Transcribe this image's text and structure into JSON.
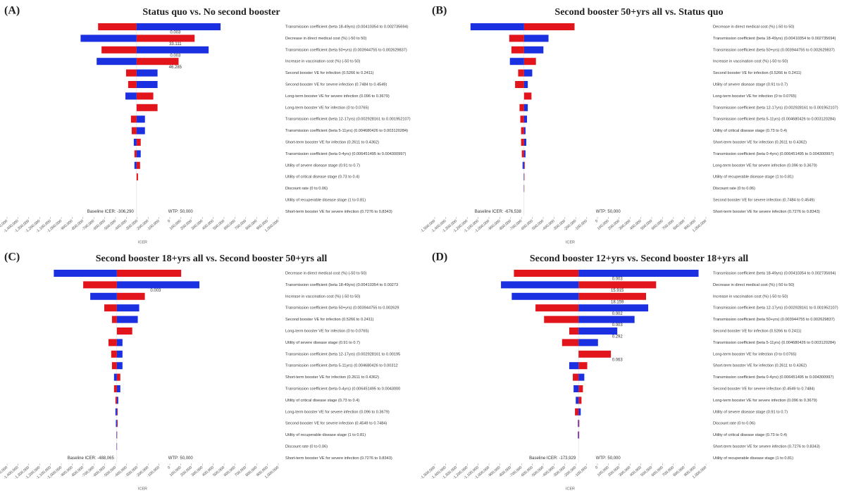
{
  "chart_data": [
    {
      "type": "tornado",
      "panel": "(A)",
      "title": "Status quo vs. No second booster",
      "xlabel": "ICER",
      "baseline": {
        "value": -306290,
        "label": "Baseline ICER: -306,290"
      },
      "wtp": {
        "value": 50000,
        "label": "WTP: 50,000"
      },
      "xlim": [
        -1500000,
        1000000
      ],
      "xticks": [
        {
          "value": -1500000,
          "label": "-1,500,000"
        },
        {
          "value": -1400000,
          "label": "-1,400,000"
        },
        {
          "value": -1300000,
          "label": "-1,300,000"
        },
        {
          "value": -1200000,
          "label": "-1,200,000"
        },
        {
          "value": -1100000,
          "label": "-1,100,000"
        },
        {
          "value": -1000000,
          "label": "-1,000,000"
        },
        {
          "value": -900000,
          "label": "-900,000"
        },
        {
          "value": -800000,
          "label": "-800,000"
        },
        {
          "value": -700000,
          "label": "-700,000"
        },
        {
          "value": -600000,
          "label": "-600,000"
        },
        {
          "value": -500000,
          "label": "-500,000"
        },
        {
          "value": -400000,
          "label": "-400,000"
        },
        {
          "value": -300000,
          "label": "-300,000"
        },
        {
          "value": -200000,
          "label": "-200,000"
        },
        {
          "value": -100000,
          "label": "-100,000"
        },
        0,
        {
          "value": 100000,
          "label": "100,000"
        },
        {
          "value": 200000,
          "label": "200,000"
        },
        {
          "value": 300000,
          "label": "300,000"
        },
        {
          "value": 400000,
          "label": "400,000"
        },
        {
          "value": 500000,
          "label": "500,000"
        },
        {
          "value": 600000,
          "label": "600,000"
        },
        {
          "value": 700000,
          "label": "700,000"
        },
        {
          "value": 800000,
          "label": "800,000"
        },
        {
          "value": 900000,
          "label": "900,000"
        },
        {
          "value": 1000000,
          "label": "1,000,000"
        }
      ],
      "categories": [
        "Transmission coefficient (beta 18-49yrs) (0.00410354 to 0.002735694)",
        "Decrease in direct medical cost (%) (-50 to 50)",
        "Transmission coefficient (beta 50+yrs) (0.003944755 to 0.002629837)",
        "Increase in vaccination cost (%) (-50 to 50)",
        "Second booster VE for infection (0.5266 to 0.2411)",
        "Second booster VE for severe infection (0.7484 to 0.4549)",
        "Long-term booster VE for severe infection (0.096 to 0.3679)",
        "Long-term booster VE for infection (0 to 0.0765)",
        "Transmission coefficient (beta 12-17yrs) (0.002928161 to 0.001952107)",
        "Transmission coefficient (beta 5-11yrs) (0.004680426 to 0.003120284)",
        "Short-term booster VE for infection (0.2611 to 0.4362)",
        "Transmission coefficient (beta 0-4yrs) (0.006451495 to 0.004300997)",
        "Utility of severe disease stage (0.91 to 0.7)",
        "Utility of critical disease stage (0.73 to 0.4)",
        "Discount rate (0 to 0.06)",
        "Utility of recuperable disease stage (1 to 0.81)",
        "Short-term booster VE for severe infection (0.7276 to 0.8343)"
      ],
      "series": [
        {
          "color": "#e3151c",
          "values": [
            -661000,
            229000,
            -629000,
            81000,
            -403000,
            -384000,
            -152000,
            -113000,
            -358000,
            -351000,
            -268000,
            -326000,
            -274000,
            -293000,
            -306290,
            -306290,
            -306290
          ]
        },
        {
          "color": "#1b30e0",
          "values": [
            468000,
            -822000,
            358000,
            -674000,
            -113000,
            -113000,
            -409000,
            -306290,
            -229000,
            -229000,
            -332000,
            -268000,
            -326000,
            -306290,
            -306290,
            -306290,
            -306290
          ]
        }
      ],
      "bar_labels": [
        "0.003",
        "33.111",
        "0.003",
        "46.285",
        null,
        null,
        null,
        null,
        null,
        null,
        null,
        null,
        null,
        null,
        null,
        null,
        null
      ]
    },
    {
      "type": "tornado",
      "panel": "(B)",
      "title": "Second booster 50+yrs all vs. Status quo",
      "xlabel": "ICER",
      "baseline": {
        "value": -676538,
        "label": "Baseline ICER: -676,538"
      },
      "wtp": {
        "value": 50000,
        "label": "WTP: 50,000"
      },
      "xlim": [
        -1500000,
        1000000
      ],
      "xticks": [
        {
          "value": -1500000,
          "label": "-1,500,000"
        },
        {
          "value": -1400000,
          "label": "-1,400,000"
        },
        {
          "value": -1300000,
          "label": "-1,300,000"
        },
        {
          "value": -1200000,
          "label": "-1,200,000"
        },
        {
          "value": -1100000,
          "label": "-1,100,000"
        },
        {
          "value": -1000000,
          "label": "-1,000,000"
        },
        {
          "value": -900000,
          "label": "-900,000"
        },
        {
          "value": -800000,
          "label": "-800,000"
        },
        {
          "value": -700000,
          "label": "-700,000"
        },
        {
          "value": -600000,
          "label": "-600,000"
        },
        {
          "value": -500000,
          "label": "-500,000"
        },
        {
          "value": -400000,
          "label": "-400,000"
        },
        {
          "value": -300000,
          "label": "-300,000"
        },
        {
          "value": -200000,
          "label": "-200,000"
        },
        {
          "value": -100000,
          "label": "-100,000"
        },
        0,
        {
          "value": 100000,
          "label": "100,000"
        },
        {
          "value": 200000,
          "label": "200,000"
        },
        {
          "value": 300000,
          "label": "300,000"
        },
        {
          "value": 400000,
          "label": "400,000"
        },
        {
          "value": 500000,
          "label": "500,000"
        },
        {
          "value": 600000,
          "label": "600,000"
        },
        {
          "value": 700000,
          "label": "700,000"
        },
        {
          "value": 800000,
          "label": "800,000"
        },
        {
          "value": 900000,
          "label": "900,000"
        },
        {
          "value": 1000000,
          "label": "1,000,000"
        }
      ],
      "categories": [
        "Decrease in direct medical cost (%) (-50 to 50)",
        "Transmission coefficient (beta 18-49yrs) (0.00410354 to 0.002735694)",
        "Transmission coefficient (beta 50+yrs) (0.003944755 to 0.002629837)",
        "Increase in vaccination cost (%) (-50 to 50)",
        "Second booster VE for infection (0.5266 to 0.2411)",
        "Utility of severe disease stage (0.91 to 0.7)",
        "Long-term booster VE for infection (0 to 0.0765)",
        "Transmission coefficient (beta 12-17yrs) (0.002928161 to 0.001952107)",
        "Transmission coefficient (beta 5-11yrs) (0.004680426 to 0.003120284)",
        "Utility of critical disease stage (0.73 to 0.4)",
        "Short-term booster VE for infection (0.2611 to 0.4362)",
        "Transmission coefficient (beta 0-4yrs) (0.006451495 to 0.004300997)",
        "Long-term booster VE for severe infection (0.096 to 0.3679)",
        "Utility of recuperable disease stage (1 to 0.81)",
        "Discount rate (0 to 0.06)",
        "Second booster VE for severe infection (0.7484 to 0.4549)",
        "Short-term booster VE for severe infection (0.7276 to 0.8343)"
      ],
      "series": [
        {
          "color": "#e3151c",
          "values": [
            -211000,
            -813000,
            -793000,
            -567000,
            -731000,
            -759000,
            -608000,
            -718000,
            -711000,
            -704000,
            -704000,
            -697000,
            -670000,
            -673000,
            -674000,
            -676538,
            -676538
          ]
        },
        {
          "color": "#1b30e0",
          "values": [
            -1170000,
            -451000,
            -498000,
            -807000,
            -601000,
            -642000,
            -676538,
            -642000,
            -649000,
            -663000,
            -656000,
            -663000,
            -690000,
            -680000,
            -679000,
            -676538,
            -676538
          ]
        }
      ],
      "bar_labels": [
        null,
        null,
        null,
        null,
        null,
        null,
        null,
        null,
        null,
        null,
        null,
        null,
        null,
        null,
        null,
        null,
        null
      ]
    },
    {
      "type": "tornado",
      "panel": "(C)",
      "title": "Second booster 18+yrs all vs. Second booster 50+yrs all",
      "xlabel": "ICER",
      "baseline": {
        "value": -488065,
        "label": "Baseline ICER: -488,065"
      },
      "wtp": {
        "value": 50000,
        "label": "WTP: 50,000"
      },
      "xlim": [
        -1500000,
        1000000
      ],
      "xticks": [
        {
          "value": -1500000,
          "label": "-1,500,000"
        },
        {
          "value": -1400000,
          "label": "-1,400,000"
        },
        {
          "value": -1300000,
          "label": "-1,300,000"
        },
        {
          "value": -1200000,
          "label": "-1,200,000"
        },
        {
          "value": -1100000,
          "label": "-1,100,000"
        },
        {
          "value": -1000000,
          "label": "-1,000,000"
        },
        {
          "value": -900000,
          "label": "-900,000"
        },
        {
          "value": -800000,
          "label": "-800,000"
        },
        {
          "value": -700000,
          "label": "-700,000"
        },
        {
          "value": -600000,
          "label": "-600,000"
        },
        {
          "value": -500000,
          "label": "-500,000"
        },
        {
          "value": -400000,
          "label": "-400,000"
        },
        {
          "value": -300000,
          "label": "-300,000"
        },
        {
          "value": -200000,
          "label": "-200,000"
        },
        {
          "value": -100000,
          "label": "-100,000"
        },
        0,
        {
          "value": 100000,
          "label": "100,000"
        },
        {
          "value": 200000,
          "label": "200,000"
        },
        {
          "value": 300000,
          "label": "300,000"
        },
        {
          "value": 400000,
          "label": "400,000"
        },
        {
          "value": 500000,
          "label": "500,000"
        },
        {
          "value": 600000,
          "label": "600,000"
        },
        {
          "value": 700000,
          "label": "700,000"
        },
        {
          "value": 800000,
          "label": "800,000"
        },
        {
          "value": 900000,
          "label": "900,000"
        },
        {
          "value": 1000000,
          "label": "1,000,000"
        }
      ],
      "categories": [
        "Decrease in direct medical cost (%) (-50 to 50)",
        "Transmission coefficient (beta 18-49yrs) (0.00410354 to 0.00273",
        "Increase in vaccination cost (%) (-50 to 50)",
        "Transmission coefficient (beta 50+yrs) (0.003944755 to 0.002629",
        "Second booster VE for infection (0.5266 to 0.2411)",
        "Long-term booster VE for infection (0 to 0.0765)",
        "Utility of severe disease stage (0.91 to 0.7)",
        "Transmission coefficient (beta 12-17yrs) (0.002928161 to 0.00195",
        "Transmission coefficient (beta 5-11yrs) (0.004680426 to 0.00312",
        "Short-term booster VE for infection (0.2611 to 0.4362)",
        "Transmission coefficient (beta 0-4yrs) (0.006451495 to 0.0043000",
        "Utility of critical disease stage (0.73 to 0.4)",
        "Long-term booster VE for severe infection (0.096 to 0.3679)",
        "Second booster VE for severe infection (0.4549 to 0.7484)",
        "Utility of recuperable disease stage (1 to 0.81)",
        "Discount rate (0 to 0.06)",
        "Short-term booster VE for severe infection (0.7276 to 0.8343)"
      ],
      "series": [
        {
          "color": "#e3151c",
          "values": [
            105000,
            -798000,
            -230000,
            -604000,
            -533000,
            -346000,
            -565000,
            -540000,
            -533000,
            -456000,
            -514000,
            -501000,
            -481000,
            -481000,
            -485000,
            -486000,
            -488065
          ]
        },
        {
          "color": "#1b30e0",
          "values": [
            -1069000,
            273000,
            -733000,
            -282000,
            -295000,
            -488065,
            -436000,
            -436000,
            -436000,
            -514000,
            -456000,
            -475000,
            -501000,
            -497000,
            -492000,
            -491000,
            -488065
          ]
        }
      ],
      "bar_labels": [
        null,
        "0.003",
        null,
        null,
        null,
        null,
        null,
        null,
        null,
        null,
        null,
        null,
        null,
        null,
        null,
        null,
        null
      ]
    },
    {
      "type": "tornado",
      "panel": "(D)",
      "title": "Second booster 12+yrs vs. Second booster 18+yrs all",
      "xlabel": "ICER",
      "baseline": {
        "value": -173929,
        "label": "Baseline ICER: -173,929"
      },
      "wtp": {
        "value": 50000,
        "label": "WTP: 50,000"
      },
      "xlim": [
        -1500000,
        1000000
      ],
      "xticks": [
        {
          "value": -1500000,
          "label": "-1,500,000"
        },
        {
          "value": -1400000,
          "label": "-1,400,000"
        },
        {
          "value": -1300000,
          "label": "-1,300,000"
        },
        {
          "value": -1200000,
          "label": "-1,200,000"
        },
        {
          "value": -1100000,
          "label": "-1,100,000"
        },
        {
          "value": -1000000,
          "label": "-1,000,000"
        },
        {
          "value": -900000,
          "label": "-900,000"
        },
        {
          "value": -800000,
          "label": "-800,000"
        },
        {
          "value": -700000,
          "label": "-700,000"
        },
        {
          "value": -600000,
          "label": "-600,000"
        },
        {
          "value": -500000,
          "label": "-500,000"
        },
        {
          "value": -400000,
          "label": "-400,000"
        },
        {
          "value": -300000,
          "label": "-300,000"
        },
        {
          "value": -200000,
          "label": "-200,000"
        },
        {
          "value": -100000,
          "label": "-100,000"
        },
        0,
        {
          "value": 100000,
          "label": "100,000"
        },
        {
          "value": 200000,
          "label": "200,000"
        },
        {
          "value": 300000,
          "label": "300,000"
        },
        {
          "value": 400000,
          "label": "400,000"
        },
        {
          "value": 500000,
          "label": "500,000"
        },
        {
          "value": 600000,
          "label": "600,000"
        },
        {
          "value": 700000,
          "label": "700,000"
        },
        {
          "value": 800000,
          "label": "800,000"
        },
        {
          "value": 900000,
          "label": "900,000"
        },
        {
          "value": 1000000,
          "label": "1,000,000"
        }
      ],
      "categories": [
        "Transmission coefficient (beta 18-49yrs) (0.00410354 to 0.002735694)",
        "Decrease in direct medical cost (%) (-50 to 50)",
        "Increase in vaccination cost (%) (-50 to 50)",
        "Transmission coefficient (beta 12-17yrs) (0.002928161 to 0.001952107)",
        "Transmission coefficient (beta 50+yrs) (0.003944755 to 0.002629837)",
        "Second booster VE for infection (0.5266 to 0.2411)",
        "Transmission coefficient (beta 5-11yrs) (0.004680426 to 0.003120284)",
        "Long-term booster VE for infection (0 to 0.0765)",
        "Short-term booster VE for infection (0.2611 to 0.4362)",
        "Transmission coefficient (beta 0-4yrs) (0.006451495 to 0.004300997)",
        "Second booster VE for severe infection (0.4549 to 0.7484)",
        "Long-term booster VE for severe infection (0.096 to 0.3679)",
        "Utility of severe disease stage (0.91 to 0.7)",
        "Discount rate (0 to 0.06)",
        "Utility of critical disease stage (0.73 to 0.4)",
        "Short-term booster VE for severe infection (0.7276 to 0.8343)",
        "Utility of recuperable disease stage (1 to 0.81)"
      ],
      "series": [
        {
          "color": "#e3151c",
          "values": [
            -770000,
            541000,
            448000,
            -571000,
            -492000,
            -260000,
            -326000,
            124000,
            -94000,
            -227000,
            -134000,
            -147000,
            -207000,
            -167000,
            -168000,
            -173929,
            -173929
          ]
        },
        {
          "color": "#1b30e0",
          "values": [
            932000,
            -889000,
            -790000,
            468000,
            342000,
            183000,
            5000,
            -173929,
            -260000,
            -121000,
            -220000,
            -200000,
            -154000,
            -180000,
            -180000,
            -173929,
            -173929
          ]
        }
      ],
      "bar_labels": [
        "0.003",
        "15.915",
        "18.159",
        "0.002",
        "0.003",
        "0.292",
        null,
        "0.063",
        null,
        null,
        null,
        null,
        null,
        null,
        null,
        null,
        null
      ]
    }
  ]
}
